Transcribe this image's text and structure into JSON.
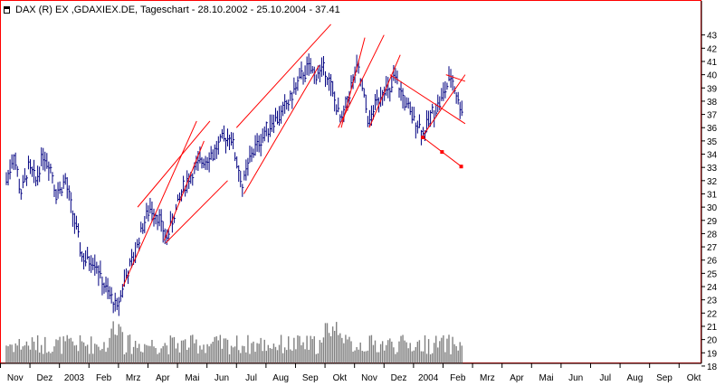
{
  "title": "DAX (R) EX ,GDAXIEX.DE, Tageschart - 28.10.2002 - 25.10.2004 - 37.41",
  "icons": {
    "title": "pin-icon"
  },
  "colors": {
    "price": "#000080",
    "channels": "#ff0000",
    "volume": "#808080",
    "frame": "#ff0000"
  },
  "chart_data": {
    "type": "candlestick",
    "title": "DAX (R) EX ,GDAXIEX.DE, Tageschart - 28.10.2002 - 25.10.2004 - 37.41",
    "xlabel": "",
    "ylabel": "",
    "ylim": [
      18,
      44
    ],
    "yticks": [
      18,
      19,
      20,
      21,
      22,
      23,
      24,
      25,
      26,
      27,
      28,
      29,
      30,
      31,
      32,
      33,
      34,
      35,
      36,
      37,
      38,
      39,
      40,
      41,
      42,
      43
    ],
    "ytick_labels": [
      "18",
      "19",
      "20",
      "21",
      "22",
      "23",
      "24",
      "25",
      "26",
      "27",
      "28",
      "29",
      "30",
      "31",
      "32",
      "33",
      "34",
      "35",
      "36",
      "37",
      "38",
      "39",
      "40",
      "41",
      "42",
      "43"
    ],
    "x_month_labels": [
      "Nov",
      "Dez",
      "2003",
      "Feb",
      "Mrz",
      "Apr",
      "Mai",
      "Jun",
      "Jul",
      "Aug",
      "Sep",
      "Okt",
      "Nov",
      "Dez",
      "2004",
      "Feb",
      "Mrz",
      "Apr",
      "Mai",
      "Jun",
      "Jul",
      "Aug",
      "Sep",
      "Okt"
    ],
    "last_value": 37.41,
    "price_anchors": [
      {
        "t": 0,
        "v": 32
      },
      {
        "t": 0.25,
        "v": 34
      },
      {
        "t": 0.5,
        "v": 31
      },
      {
        "t": 0.75,
        "v": 33
      },
      {
        "t": 1.0,
        "v": 32
      },
      {
        "t": 1.25,
        "v": 34
      },
      {
        "t": 1.5,
        "v": 33
      },
      {
        "t": 1.7,
        "v": 31
      },
      {
        "t": 2.0,
        "v": 32
      },
      {
        "t": 2.3,
        "v": 29
      },
      {
        "t": 2.6,
        "v": 26
      },
      {
        "t": 3.0,
        "v": 26
      },
      {
        "t": 3.3,
        "v": 24
      },
      {
        "t": 3.6,
        "v": 23
      },
      {
        "t": 3.75,
        "v": 22.3
      },
      {
        "t": 4.0,
        "v": 24.5
      },
      {
        "t": 4.3,
        "v": 26
      },
      {
        "t": 4.6,
        "v": 28.5
      },
      {
        "t": 4.9,
        "v": 30
      },
      {
        "t": 5.2,
        "v": 29
      },
      {
        "t": 5.4,
        "v": 27.5
      },
      {
        "t": 5.7,
        "v": 29.5
      },
      {
        "t": 6.0,
        "v": 31.5
      },
      {
        "t": 6.3,
        "v": 32.5
      },
      {
        "t": 6.6,
        "v": 33.5
      },
      {
        "t": 7.0,
        "v": 34
      },
      {
        "t": 7.3,
        "v": 35
      },
      {
        "t": 7.6,
        "v": 35.5
      },
      {
        "t": 7.85,
        "v": 33
      },
      {
        "t": 8.0,
        "v": 31.5
      },
      {
        "t": 8.3,
        "v": 34
      },
      {
        "t": 8.6,
        "v": 35
      },
      {
        "t": 9.0,
        "v": 36.5
      },
      {
        "t": 9.3,
        "v": 37
      },
      {
        "t": 9.6,
        "v": 38
      },
      {
        "t": 9.9,
        "v": 39.5
      },
      {
        "t": 10.2,
        "v": 40.5
      },
      {
        "t": 10.5,
        "v": 40
      },
      {
        "t": 10.8,
        "v": 40.5
      },
      {
        "t": 11.0,
        "v": 39
      },
      {
        "t": 11.2,
        "v": 37.5
      },
      {
        "t": 11.35,
        "v": 36.3
      },
      {
        "t": 11.6,
        "v": 38.5
      },
      {
        "t": 11.9,
        "v": 40.5
      },
      {
        "t": 12.1,
        "v": 38.5
      },
      {
        "t": 12.3,
        "v": 36.3
      },
      {
        "t": 12.55,
        "v": 38
      },
      {
        "t": 12.8,
        "v": 39
      },
      {
        "t": 13.0,
        "v": 38.5
      },
      {
        "t": 13.15,
        "v": 39.8
      },
      {
        "t": 13.4,
        "v": 38.5
      },
      {
        "t": 13.7,
        "v": 37
      },
      {
        "t": 14.0,
        "v": 36.2
      },
      {
        "t": 14.15,
        "v": 35.5
      },
      {
        "t": 14.4,
        "v": 37
      },
      {
        "t": 14.7,
        "v": 38
      },
      {
        "t": 15.0,
        "v": 39.5
      },
      {
        "t": 15.1,
        "v": 39.8
      },
      {
        "t": 15.3,
        "v": 38
      },
      {
        "t": 15.45,
        "v": 37.41
      }
    ],
    "channel_lines": [
      {
        "p1": {
          "t": 3.95,
          "v": 24
        },
        "p2": {
          "t": 6.45,
          "v": 36.5
        }
      },
      {
        "p1": {
          "t": 5.35,
          "v": 27.5
        },
        "p2": {
          "t": 6.7,
          "v": 35
        }
      },
      {
        "p1": {
          "t": 4.45,
          "v": 30
        },
        "p2": {
          "t": 6.9,
          "v": 36.5
        }
      },
      {
        "p1": {
          "t": 5.4,
          "v": 27.3
        },
        "p2": {
          "t": 7.5,
          "v": 32
        }
      },
      {
        "p1": {
          "t": 7.8,
          "v": 36
        },
        "p2": {
          "t": 11.0,
          "v": 43.8
        }
      },
      {
        "p1": {
          "t": 8.05,
          "v": 31
        },
        "p2": {
          "t": 10.6,
          "v": 40.7
        }
      },
      {
        "p1": {
          "t": 11.35,
          "v": 36
        },
        "p2": {
          "t": 12.15,
          "v": 42.8
        }
      },
      {
        "p1": {
          "t": 11.25,
          "v": 36
        },
        "p2": {
          "t": 12.8,
          "v": 43
        }
      },
      {
        "p1": {
          "t": 12.3,
          "v": 36
        },
        "p2": {
          "t": 13.35,
          "v": 41.5
        }
      },
      {
        "p1": {
          "t": 13.0,
          "v": 40
        },
        "p2": {
          "t": 15.55,
          "v": 36.3
        }
      },
      {
        "p1": {
          "t": 14.15,
          "v": 35.5
        },
        "p2": {
          "t": 15.55,
          "v": 40
        }
      },
      {
        "p1": {
          "t": 14.9,
          "v": 40
        },
        "p2": {
          "t": 15.55,
          "v": 39.5
        }
      },
      {
        "p1": {
          "t": 14.1,
          "v": 35.3
        },
        "p2": {
          "t": 15.4,
          "v": 33.1
        }
      }
    ],
    "projection_points": [
      {
        "t": 14.1,
        "v": 35.3
      },
      {
        "t": 14.75,
        "v": 34.2
      },
      {
        "t": 15.4,
        "v": 33.1
      }
    ],
    "grid": false,
    "legend": "none"
  }
}
